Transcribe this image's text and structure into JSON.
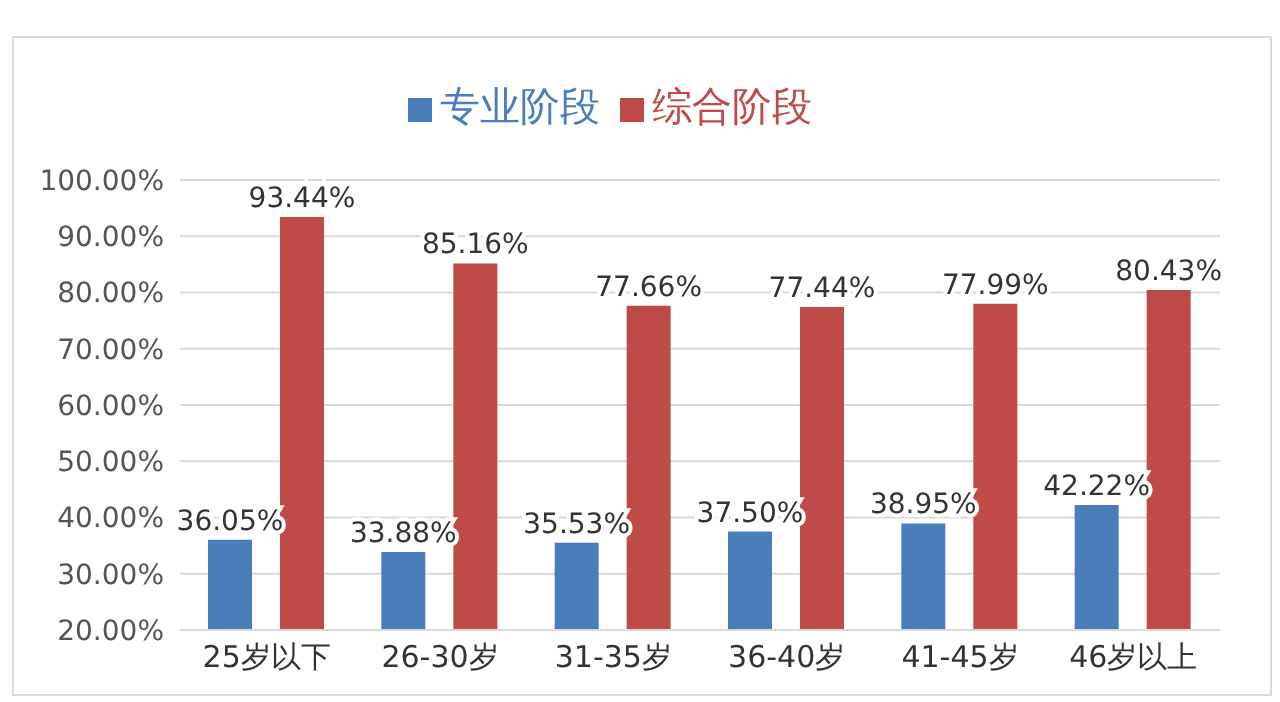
{
  "chart_data": {
    "type": "bar",
    "categories": [
      "25岁以下",
      "26-30岁",
      "31-35岁",
      "36-40岁",
      "41-45岁",
      "46岁以上"
    ],
    "series": [
      {
        "name": "专业阶段",
        "color": "#4a7ebb",
        "values": [
          36.05,
          33.88,
          35.53,
          37.5,
          38.95,
          42.22
        ],
        "value_labels": [
          "36.05%",
          "33.88%",
          "35.53%",
          "37.50%",
          "38.95%",
          "42.22%"
        ]
      },
      {
        "name": "综合阶段",
        "color": "#be4b48",
        "values": [
          93.44,
          85.16,
          77.66,
          77.44,
          77.99,
          80.43
        ],
        "value_labels": [
          "93.44%",
          "85.16%",
          "77.66%",
          "77.44%",
          "77.99%",
          "80.43%"
        ]
      }
    ],
    "ylim": [
      20,
      100
    ],
    "yticks": [
      {
        "value": 20,
        "label": "20.00%"
      },
      {
        "value": 30,
        "label": "30.00%"
      },
      {
        "value": 40,
        "label": "40.00%"
      },
      {
        "value": 50,
        "label": "50.00%"
      },
      {
        "value": 60,
        "label": "60.00%"
      },
      {
        "value": 70,
        "label": "70.00%"
      },
      {
        "value": 80,
        "label": "80.00%"
      },
      {
        "value": 90,
        "label": "90.00%"
      },
      {
        "value": 100,
        "label": "100.00%"
      }
    ],
    "grid": "y",
    "legend": "top"
  }
}
